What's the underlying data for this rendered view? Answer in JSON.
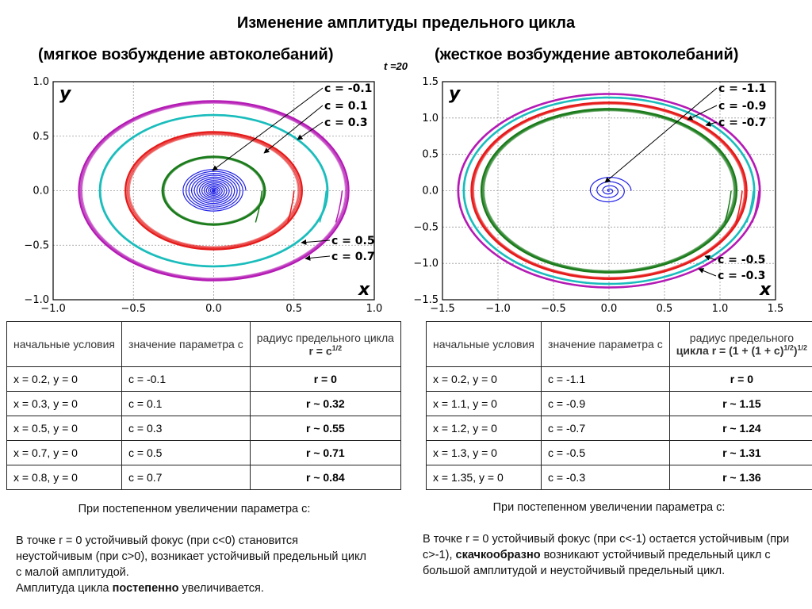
{
  "header": {
    "title": "Изменение амплитуды предельного цикла",
    "left_subtitle": "(мягкое возбуждение автоколебаний)",
    "right_subtitle": "(жесткое возбуждение автоколебаний)",
    "time_label": "t =20"
  },
  "chart_data": [
    {
      "type": "line",
      "name": "soft-excitation-phase-portrait",
      "xlabel": "x",
      "ylabel": "y",
      "xlim": [
        -1.0,
        1.0
      ],
      "ylim": [
        -1.0,
        1.0
      ],
      "xticks": [
        "−1.0",
        "−0.5",
        "0.0",
        "0.5",
        "1.0"
      ],
      "yticks": [
        "1.0",
        "0.5",
        "0.0",
        "−0.5",
        "−1.0"
      ],
      "grid": true,
      "series": [
        {
          "name": "c = -0.1",
          "color": "#1f1fe6",
          "kind": "stable-focus",
          "x0": 0.2,
          "radius": 0.0
        },
        {
          "name": "c = 0.1",
          "color": "#1a7a1a",
          "kind": "limit-cycle",
          "x0": 0.3,
          "radius": 0.32
        },
        {
          "name": "c = 0.3",
          "color": "#e61a1a",
          "kind": "limit-cycle",
          "x0": 0.5,
          "radius": 0.55
        },
        {
          "name": "c = 0.5",
          "color": "#1abcbc",
          "kind": "limit-cycle",
          "x0": 0.7,
          "radius": 0.71
        },
        {
          "name": "c = 0.7",
          "color": "#b41ab4",
          "kind": "limit-cycle",
          "x0": 0.8,
          "radius": 0.84
        }
      ],
      "annotations": [
        "c = -0.1",
        "c = 0.1",
        "c = 0.3",
        "c = 0.5",
        "c = 0.7"
      ]
    },
    {
      "type": "line",
      "name": "hard-excitation-phase-portrait",
      "xlabel": "x",
      "ylabel": "y",
      "xlim": [
        -1.5,
        1.5
      ],
      "ylim": [
        -1.5,
        1.5
      ],
      "xticks": [
        "−1.5",
        "−1.0",
        "−0.5",
        "0.0",
        "0.5",
        "1.0",
        "1.5"
      ],
      "yticks": [
        "1.5",
        "1.0",
        "0.5",
        "0.0",
        "−0.5",
        "−1.0",
        "−1.5"
      ],
      "grid": true,
      "series": [
        {
          "name": "c = -1.1",
          "color": "#1f1fe6",
          "kind": "stable-focus",
          "x0": 0.2,
          "radius": 0.0
        },
        {
          "name": "c = -0.9",
          "color": "#1a7a1a",
          "kind": "limit-cycle",
          "x0": 1.1,
          "radius": 1.15
        },
        {
          "name": "c = -0.7",
          "color": "#e61a1a",
          "kind": "limit-cycle",
          "x0": 1.2,
          "radius": 1.24
        },
        {
          "name": "c = -0.5",
          "color": "#1abcbc",
          "kind": "limit-cycle",
          "x0": 1.3,
          "radius": 1.31
        },
        {
          "name": "c = -0.3",
          "color": "#b41ab4",
          "kind": "limit-cycle",
          "x0": 1.35,
          "radius": 1.36
        }
      ],
      "annotations": [
        "c = -1.1",
        "c = -0.9",
        "c = -0.7",
        "c = -0.5",
        "c = -0.3"
      ]
    }
  ],
  "left_table": {
    "headers": [
      "начальные условия",
      "значение параметра c",
      "радиус предельного цикла",
      "r = c",
      "1/2"
    ],
    "rows": [
      [
        "x = 0.2, y = 0",
        "c = -0.1",
        "r = 0"
      ],
      [
        "x = 0.3, y = 0",
        "c = 0.1",
        "r ~ 0.32"
      ],
      [
        "x = 0.5, y = 0",
        "c = 0.3",
        "r ~ 0.55"
      ],
      [
        "x = 0.7, y = 0",
        "c = 0.5",
        "r ~ 0.71"
      ],
      [
        "x = 0.8, y = 0",
        "c = 0.7",
        "r ~ 0.84"
      ]
    ]
  },
  "right_table": {
    "headers": [
      "начальные условия",
      "значение параметра c",
      "радиус предельного",
      "цикла r = (1 + (1 + c)",
      "1/2",
      ")",
      "1/2"
    ],
    "rows": [
      [
        "x = 0.2, y = 0",
        "c = -1.1",
        "r = 0"
      ],
      [
        "x = 1.1, y = 0",
        "c = -0.9",
        "r ~ 1.15"
      ],
      [
        "x = 1.2, y = 0",
        "c = -0.7",
        "r ~ 1.24"
      ],
      [
        "x = 1.3, y = 0",
        "c = -0.5",
        "r ~ 1.31"
      ],
      [
        "x = 1.35, y = 0",
        "c = -0.3",
        "r ~ 1.36"
      ]
    ]
  },
  "left_note": {
    "lead": "При постепенном увеличении параметра c:",
    "text1": "В точке r = 0 устойчивый фокус (при c<0) становится неустойчивым (при c>0), возникает устойчивый предельный цикл с малой амплитудой.",
    "text2a": "Амплитуда цикла ",
    "text2b": "постепенно",
    "text2c": " увеличивается."
  },
  "right_note": {
    "lead": "При постепенном увеличении параметра c:",
    "text1a": "В точке r = 0 устойчивый фокус (при c<-1) остается устойчивым (при c>-1), ",
    "text1b": "скачкообразно",
    "text1c": " возникают устойчивый предельный цикл с большой амплитудой и неустойчивый предельный цикл."
  }
}
